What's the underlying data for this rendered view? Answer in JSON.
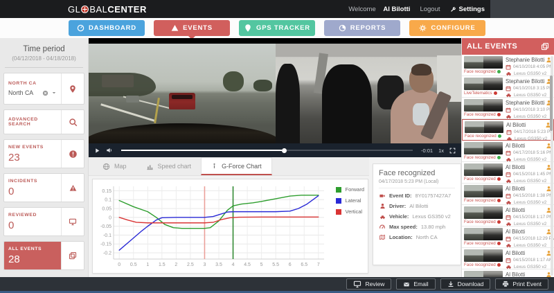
{
  "header": {
    "logo_pre": "GL",
    "logo_mid": "BAL",
    "logo_bold": "CENTER",
    "welcome_label": "Welcome",
    "user_name": "Al Bilotti",
    "logout_label": "Logout",
    "settings_label": "Settings"
  },
  "nav": {
    "items": [
      {
        "id": "dashboard",
        "label": "DASHBOARD",
        "color": "#4ba3dd",
        "icon": "gauge",
        "active": false
      },
      {
        "id": "events",
        "label": "EVENTS",
        "color": "#d15f5d",
        "icon": "warning-triangle",
        "active": true
      },
      {
        "id": "gps-tracker",
        "label": "GPS TRACKER",
        "color": "#53c6a0",
        "icon": "map-pin",
        "active": false
      },
      {
        "id": "reports",
        "label": "REPORTS",
        "color": "#9fa9cc",
        "icon": "pie-chart",
        "active": false
      },
      {
        "id": "configure",
        "label": "CONFIGURE",
        "color": "#f8a94a",
        "icon": "gear",
        "active": false
      }
    ]
  },
  "sidebar": {
    "time_period_title": "Time period",
    "time_period_range": "(04/12/2018 - 04/18/2018)",
    "location_label": "NORTH CA",
    "location_value": "North CA",
    "advanced_search_label": "ADVANCED SEARCH",
    "stats": [
      {
        "label": "NEW EVENTS",
        "value": "23",
        "icon": "alert-badge",
        "active": false
      },
      {
        "label": "INCIDENTS",
        "value": "0",
        "icon": "warning-triangle",
        "active": false
      },
      {
        "label": "REVIEWED",
        "value": "0",
        "icon": "monitor",
        "active": false
      },
      {
        "label": "ALL EVENTS",
        "value": "28",
        "icon": "copy",
        "active": true
      }
    ]
  },
  "player": {
    "time_remaining": "-0:01",
    "speed": "1x"
  },
  "tabs": [
    {
      "label": "Map",
      "icon": "globe",
      "active": false
    },
    {
      "label": "Speed chart",
      "icon": "bar-chart",
      "active": false
    },
    {
      "label": "G-Force Chart",
      "icon": "gforce",
      "active": true
    }
  ],
  "chart_data": {
    "type": "line",
    "title": "",
    "xlabel": "",
    "ylabel": "",
    "xlim": [
      -0.2,
      7.2
    ],
    "ylim": [
      -0.235,
      0.175
    ],
    "x_ticks": [
      0,
      0.5,
      1,
      1.5,
      2,
      2.5,
      3,
      3.5,
      4,
      4.5,
      5,
      5.5,
      6,
      6.5,
      7
    ],
    "x_tick_labels": [
      "0",
      "0.5",
      "1",
      "1.5",
      "2",
      "2.5",
      "3",
      "3.5",
      "4",
      "4.5",
      "5",
      "5.5",
      "6",
      "6.5",
      "7"
    ],
    "y_ticks": [
      0.15,
      0.1,
      0.05,
      0,
      -0.05,
      -0.1,
      -0.15,
      -0.2
    ],
    "y_tick_labels": [
      "0.15",
      "0.1",
      "0.05",
      "0",
      "-0.05",
      "-0.1",
      "-0.15",
      "-0.2"
    ],
    "grid": true,
    "legend_position": "right",
    "series": [
      {
        "name": "Forward",
        "color": "#2e9e2e",
        "points": [
          [
            0,
            0.095
          ],
          [
            0.5,
            0.06
          ],
          [
            1,
            0.032
          ],
          [
            1.3,
            0
          ],
          [
            1.6,
            -0.04
          ],
          [
            1.9,
            -0.058
          ],
          [
            2.2,
            -0.062
          ],
          [
            2.6,
            -0.062
          ],
          [
            3,
            -0.062
          ],
          [
            3.2,
            -0.058
          ],
          [
            3.5,
            -0.02
          ],
          [
            3.8,
            0.04
          ],
          [
            4,
            0.065
          ],
          [
            4.3,
            0.075
          ],
          [
            4.7,
            0.082
          ],
          [
            5,
            0.09
          ],
          [
            5.5,
            0.105
          ],
          [
            6,
            0.12
          ],
          [
            6.4,
            0.125
          ],
          [
            7,
            0.125
          ]
        ]
      },
      {
        "name": "Lateral",
        "color": "#2929d6",
        "points": [
          [
            0,
            -0.185
          ],
          [
            0.4,
            -0.13
          ],
          [
            0.8,
            -0.075
          ],
          [
            1,
            -0.05
          ],
          [
            1.3,
            -0.015
          ],
          [
            1.5,
            -0.002
          ],
          [
            2,
            0
          ],
          [
            2.5,
            0
          ],
          [
            3,
            0
          ],
          [
            3.3,
            0.005
          ],
          [
            3.6,
            0.02
          ],
          [
            3.8,
            0.03
          ],
          [
            4,
            0.032
          ],
          [
            4.5,
            0.032
          ],
          [
            5,
            0.032
          ],
          [
            5.5,
            0.032
          ],
          [
            6,
            0.035
          ],
          [
            6.3,
            0.05
          ],
          [
            6.6,
            0.075
          ],
          [
            7,
            0.122
          ]
        ]
      },
      {
        "name": "Vertical",
        "color": "#d93434",
        "points": [
          [
            0,
            0
          ],
          [
            0.3,
            -0.015
          ],
          [
            0.6,
            -0.028
          ],
          [
            1,
            -0.031
          ],
          [
            1.5,
            -0.031
          ],
          [
            2,
            -0.031
          ],
          [
            2.5,
            -0.031
          ],
          [
            3,
            -0.031
          ],
          [
            3.3,
            -0.028
          ],
          [
            3.6,
            -0.012
          ],
          [
            3.9,
            -0.002
          ],
          [
            4.2,
            0.001
          ],
          [
            5,
            0.002
          ],
          [
            6,
            0.002
          ],
          [
            7,
            0.002
          ]
        ]
      }
    ],
    "markers": [
      {
        "x": 3,
        "color": "#eba09a"
      },
      {
        "x": 4,
        "color": "#318a33"
      }
    ]
  },
  "event_details": {
    "title": "Face recognized",
    "timestamp": "04/17/2018 5:23 PM (Local)",
    "fields": [
      {
        "label": "Event ID",
        "value": "8Y01757427A7",
        "icon": "video-camera"
      },
      {
        "label": "Driver",
        "value": "Al Bilotti",
        "icon": "person"
      },
      {
        "label": "Vehicle",
        "value": "Lexus GS350 v2",
        "icon": "car"
      },
      {
        "label": "Max speed",
        "value": "13.80 mph",
        "icon": "speedometer"
      },
      {
        "label": "Location",
        "value": "North CA",
        "icon": "map"
      }
    ]
  },
  "events_panel": {
    "title": "ALL EVENTS",
    "items": [
      {
        "name": "Stephanie Bilotti",
        "date": "04/10/2018 4:05 PM",
        "vehicle": "Lexus GS350 v2",
        "caption": "Face recognized",
        "status": "green",
        "selected": false
      },
      {
        "name": "Stephanie Bilotti",
        "date": "04/10/2018 3:15 PM",
        "vehicle": "Lexus GS350 v2",
        "caption": "LiveTelematics",
        "status": "red",
        "selected": false
      },
      {
        "name": "Stephanie Bilotti",
        "date": "04/10/2018 3:10 PM",
        "vehicle": "Lexus GS350 v2",
        "caption": "Face recognized",
        "status": "red",
        "selected": false
      },
      {
        "name": "Al Bilotti",
        "date": "04/17/2018 5:23 PM",
        "vehicle": "Lexus GS350 v2",
        "caption": "Face recognized",
        "status": "green",
        "selected": true
      },
      {
        "name": "Al Bilotti",
        "date": "04/17/2018 5:16 PM",
        "vehicle": "Lexus GS350 v2",
        "caption": "Face recognized",
        "status": "green",
        "selected": false
      },
      {
        "name": "Al Bilotti",
        "date": "04/15/2018 1:45 PM",
        "vehicle": "Lexus GS350 v2",
        "caption": "Face recognized",
        "status": "red",
        "selected": false
      },
      {
        "name": "Al Bilotti",
        "date": "04/15/2018 1:38 PM",
        "vehicle": "Lexus GS350 v2",
        "caption": "Face recognized",
        "status": "red",
        "selected": false
      },
      {
        "name": "Al Bilotti",
        "date": "04/15/2018 1:17 PM",
        "vehicle": "Lexus GS350 v2",
        "caption": "Face recognized",
        "status": "red",
        "selected": false
      },
      {
        "name": "Al Bilotti",
        "date": "04/15/2018 12:29 PM",
        "vehicle": "Lexus GS350 v2",
        "caption": "Face recognized",
        "status": "red",
        "selected": false
      },
      {
        "name": "Al Bilotti",
        "date": "04/15/2018 1:17 AM",
        "vehicle": "Lexus GS350 v2",
        "caption": "Face recognized",
        "status": "red",
        "selected": false
      },
      {
        "name": "Al Bilotti",
        "date": "",
        "vehicle": "",
        "caption": "",
        "status": "none",
        "selected": false
      }
    ]
  },
  "footer": {
    "buttons": [
      {
        "label": "Review",
        "icon": "monitor"
      },
      {
        "label": "Email",
        "icon": "envelope"
      },
      {
        "label": "Download",
        "icon": "download"
      },
      {
        "label": "Print Event",
        "icon": "printer"
      }
    ]
  }
}
